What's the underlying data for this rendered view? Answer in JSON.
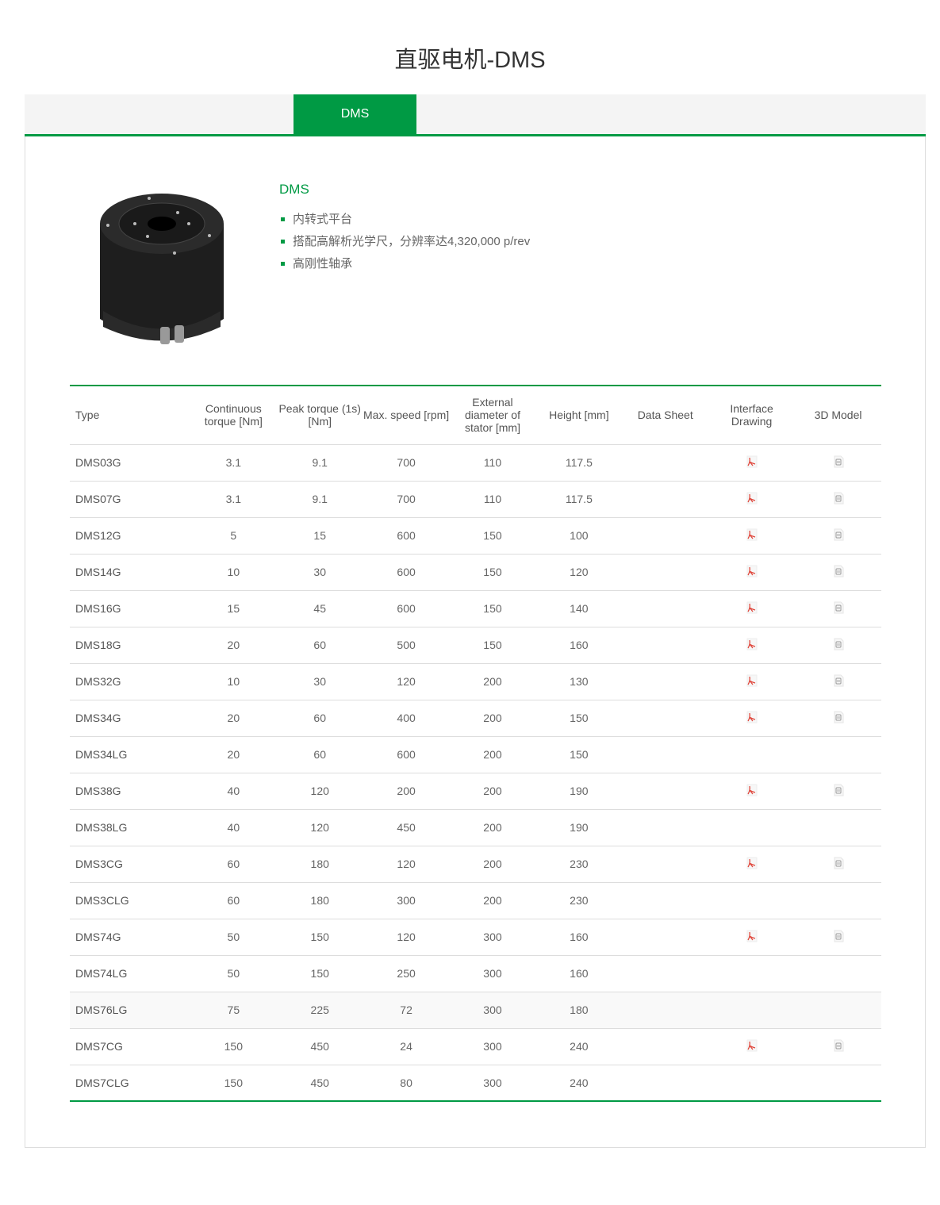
{
  "page": {
    "title": "直驱电机-DMS"
  },
  "tabs": [
    {
      "label": "DMS",
      "active": true
    }
  ],
  "product": {
    "name": "DMS",
    "features": [
      "内转式平台",
      "搭配高解析光学尺，分辨率达4,320,000 p/rev",
      "高刚性轴承"
    ]
  },
  "colors": {
    "accent": "#009a44",
    "pdf": "#e0463b"
  },
  "table": {
    "headers": [
      "Type",
      "Continuous torque [Nm]",
      "Peak torque (1s) [Nm]",
      "Max. speed [rpm]",
      "External diameter of stator [mm]",
      "Height [mm]",
      "Data Sheet",
      "Interface Drawing",
      "3D Model"
    ],
    "rows": [
      {
        "type": "DMS03G",
        "ct": "3.1",
        "pt": "9.1",
        "ms": "700",
        "od": "110",
        "h": "117.5",
        "drawing": true,
        "model": true
      },
      {
        "type": "DMS07G",
        "ct": "3.1",
        "pt": "9.1",
        "ms": "700",
        "od": "110",
        "h": "117.5",
        "drawing": true,
        "model": true
      },
      {
        "type": "DMS12G",
        "ct": "5",
        "pt": "15",
        "ms": "600",
        "od": "150",
        "h": "100",
        "drawing": true,
        "model": true
      },
      {
        "type": "DMS14G",
        "ct": "10",
        "pt": "30",
        "ms": "600",
        "od": "150",
        "h": "120",
        "drawing": true,
        "model": true
      },
      {
        "type": "DMS16G",
        "ct": "15",
        "pt": "45",
        "ms": "600",
        "od": "150",
        "h": "140",
        "drawing": true,
        "model": true
      },
      {
        "type": "DMS18G",
        "ct": "20",
        "pt": "60",
        "ms": "500",
        "od": "150",
        "h": "160",
        "drawing": true,
        "model": true
      },
      {
        "type": "DMS32G",
        "ct": "10",
        "pt": "30",
        "ms": "120",
        "od": "200",
        "h": "130",
        "drawing": true,
        "model": true
      },
      {
        "type": "DMS34G",
        "ct": "20",
        "pt": "60",
        "ms": "400",
        "od": "200",
        "h": "150",
        "drawing": true,
        "model": true
      },
      {
        "type": "DMS34LG",
        "ct": "20",
        "pt": "60",
        "ms": "600",
        "od": "200",
        "h": "150",
        "drawing": false,
        "model": false
      },
      {
        "type": "DMS38G",
        "ct": "40",
        "pt": "120",
        "ms": "200",
        "od": "200",
        "h": "190",
        "drawing": true,
        "model": true
      },
      {
        "type": "DMS38LG",
        "ct": "40",
        "pt": "120",
        "ms": "450",
        "od": "200",
        "h": "190",
        "drawing": false,
        "model": false
      },
      {
        "type": "DMS3CG",
        "ct": "60",
        "pt": "180",
        "ms": "120",
        "od": "200",
        "h": "230",
        "drawing": true,
        "model": true
      },
      {
        "type": "DMS3CLG",
        "ct": "60",
        "pt": "180",
        "ms": "300",
        "od": "200",
        "h": "230",
        "drawing": false,
        "model": false
      },
      {
        "type": "DMS74G",
        "ct": "50",
        "pt": "150",
        "ms": "120",
        "od": "300",
        "h": "160",
        "drawing": true,
        "model": true
      },
      {
        "type": "DMS74LG",
        "ct": "50",
        "pt": "150",
        "ms": "250",
        "od": "300",
        "h": "160",
        "drawing": false,
        "model": false
      },
      {
        "type": "DMS76LG",
        "ct": "75",
        "pt": "225",
        "ms": "72",
        "od": "300",
        "h": "180",
        "drawing": false,
        "model": false,
        "highlighted": true
      },
      {
        "type": "DMS7CG",
        "ct": "150",
        "pt": "450",
        "ms": "24",
        "od": "300",
        "h": "240",
        "drawing": true,
        "model": true
      },
      {
        "type": "DMS7CLG",
        "ct": "150",
        "pt": "450",
        "ms": "80",
        "od": "300",
        "h": "240",
        "drawing": false,
        "model": false
      }
    ]
  }
}
